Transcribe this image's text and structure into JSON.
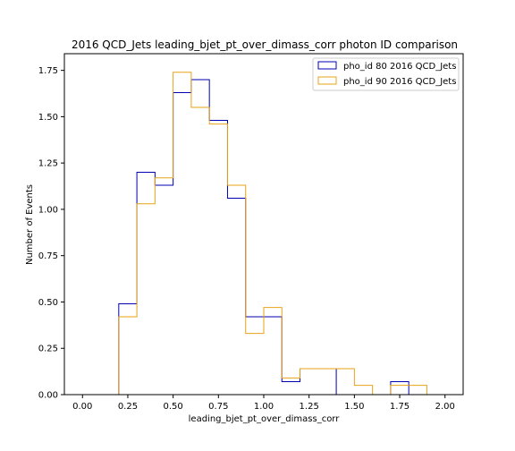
{
  "chart_data": {
    "type": "histogram",
    "title": "2016 QCD_Jets leading_bjet_pt_over_dimass_corr photon ID comparison",
    "xlabel": "leading_bjet_pt_over_dimass_corr",
    "ylabel": "Number of Events",
    "xlim": [
      -0.1,
      2.1
    ],
    "ylim": [
      0,
      1.84
    ],
    "xticks": [
      "0.00",
      "0.25",
      "0.50",
      "0.75",
      "1.00",
      "1.25",
      "1.50",
      "1.75",
      "2.00"
    ],
    "yticks": [
      "0.00",
      "0.25",
      "0.50",
      "0.75",
      "1.00",
      "1.25",
      "1.50",
      "1.75"
    ],
    "bin_edges": [
      0.0,
      0.1,
      0.2,
      0.3,
      0.4,
      0.5,
      0.6,
      0.7,
      0.8,
      0.9,
      1.0,
      1.1,
      1.2,
      1.3,
      1.4,
      1.5,
      1.6,
      1.7,
      1.8,
      1.9,
      2.0
    ],
    "legend_position": "upper right",
    "grid": false,
    "series": [
      {
        "name": "pho_id 80 2016 QCD_Jets",
        "color": "#0000b0",
        "values": [
          0,
          0,
          0.49,
          1.2,
          1.13,
          1.63,
          1.7,
          1.48,
          1.06,
          0.42,
          0.42,
          0.07,
          0.14,
          0.14,
          0,
          0,
          0,
          0.07,
          0,
          0
        ]
      },
      {
        "name": "pho_id 90 2016 QCD_Jets",
        "color": "#e8a317",
        "values": [
          0,
          0,
          0.42,
          1.03,
          1.17,
          1.74,
          1.55,
          1.46,
          1.13,
          0.33,
          0.47,
          0.09,
          0.14,
          0.14,
          0.14,
          0.05,
          0,
          0.05,
          0.05,
          0
        ]
      }
    ]
  }
}
